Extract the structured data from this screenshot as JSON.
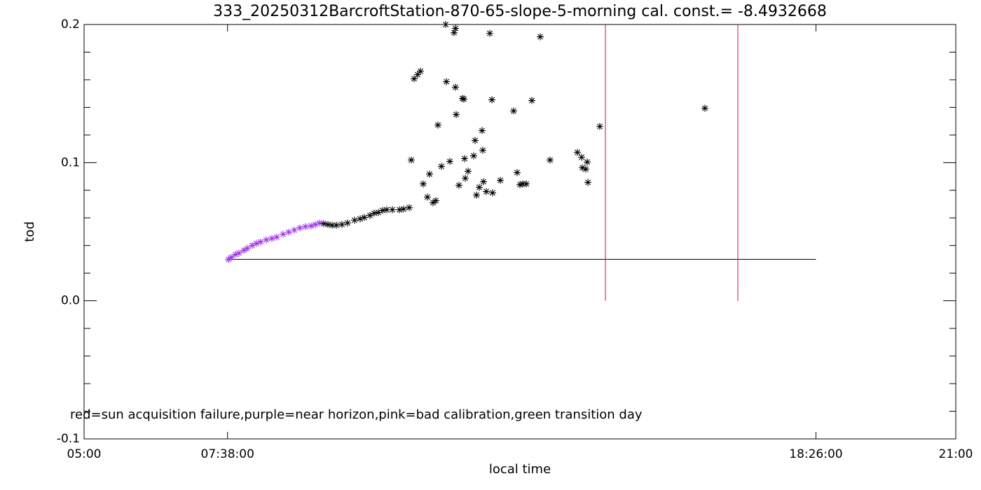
{
  "chart_data": {
    "type": "scatter",
    "title": "333_20250312BarcroftStation-870-65-slope-5-morning cal. const.= -8.4932668",
    "x_label": "local time",
    "y_label": "tod",
    "annotation": "red=sun acquisition failure,purple=near horizon,pink=bad calibration,green transition day",
    "xlim": [
      5,
      21
    ],
    "xticks": [
      {
        "value": 5,
        "label": "05:00"
      },
      {
        "value": 7.6333,
        "label": "07:38:00"
      },
      {
        "value": 18.4333,
        "label": "18:26:00"
      },
      {
        "value": 21,
        "label": "21:00"
      }
    ],
    "ylim": [
      -0.1,
      0.2
    ],
    "yticks": [
      -0.1,
      {
        "value": 0,
        "label": "0.0"
      },
      0.1,
      0.2
    ],
    "y_minor_ticks": 5,
    "baseline": {
      "y": 0.03,
      "x": [
        7.6333,
        18.4333
      ],
      "color": "#000000"
    },
    "vlines": {
      "x": [
        14.569,
        17.0
      ],
      "y": [
        0,
        0.2
      ],
      "color": "#d0103a"
    },
    "series": [
      {
        "color": "#000000",
        "x": [
          9.399,
          9.476,
          9.553,
          9.63,
          9.733,
          9.836,
          9.965,
          10.068,
          10.145,
          10.248,
          10.325,
          10.402,
          10.479,
          10.556,
          10.659,
          10.788,
          10.865,
          10.968,
          11.006,
          11.058,
          11.122,
          11.174,
          11.225,
          11.302,
          11.341,
          11.405,
          11.457,
          11.495,
          11.559,
          11.637,
          11.65,
          11.714,
          11.791,
          11.817,
          11.817,
          11.83,
          11.881,
          11.945,
          11.971,
          11.984,
          11.997,
          12.048,
          12.151,
          12.177,
          12.203,
          12.254,
          12.305,
          12.318,
          12.331,
          12.383,
          12.447,
          12.486,
          12.498,
          12.64,
          12.884,
          12.949,
          13.0,
          13.051,
          13.116,
          13.219,
          13.373,
          13.553,
          14.055,
          14.132,
          14.145,
          14.209,
          14.235,
          14.248,
          14.466,
          16.395
        ],
        "values": [
          0.0558,
          0.0552,
          0.0547,
          0.0547,
          0.0552,
          0.0563,
          0.0583,
          0.0593,
          0.0603,
          0.0618,
          0.0634,
          0.0639,
          0.0654,
          0.0659,
          0.0659,
          0.0659,
          0.0664,
          0.0674,
          0.1019,
          0.1607,
          0.1637,
          0.1662,
          0.0846,
          0.075,
          0.0917,
          0.071,
          0.0725,
          0.1272,
          0.0973,
          0.2,
          0.1586,
          0.1009,
          0.1941,
          0.1972,
          0.1546,
          0.1348,
          0.0836,
          0.1465,
          0.146,
          0.1029,
          0.0887,
          0.0938,
          0.1049,
          0.1161,
          0.0765,
          0.0821,
          0.1232,
          0.109,
          0.0862,
          0.0791,
          0.1936,
          0.1455,
          0.0781,
          0.0872,
          0.1374,
          0.0928,
          0.0841,
          0.0846,
          0.0846,
          0.145,
          0.1911,
          0.1019,
          0.1074,
          0.1039,
          0.0963,
          0.0953,
          0.1004,
          0.0857,
          0.1262,
          0.1394
        ]
      },
      {
        "color": "#a030e8",
        "x": [
          7.65,
          7.701,
          7.778,
          7.842,
          7.932,
          7.997,
          8.087,
          8.164,
          8.241,
          8.344,
          8.447,
          8.537,
          8.653,
          8.756,
          8.859,
          8.961,
          9.064,
          9.167,
          9.244,
          9.322
        ],
        "values": [
          0.0299,
          0.0314,
          0.0335,
          0.0345,
          0.0365,
          0.038,
          0.04,
          0.0416,
          0.0426,
          0.0441,
          0.0451,
          0.0461,
          0.0482,
          0.0497,
          0.0512,
          0.0527,
          0.0537,
          0.0542,
          0.0552,
          0.0563
        ]
      }
    ]
  }
}
